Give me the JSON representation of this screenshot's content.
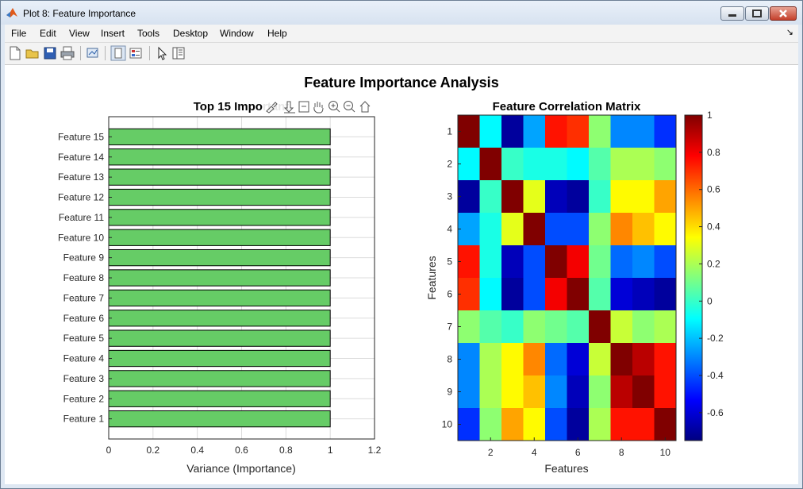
{
  "window": {
    "title": "Plot 8: Feature Importance"
  },
  "menu": [
    "File",
    "Edit",
    "View",
    "Insert",
    "Tools",
    "Desktop",
    "Window",
    "Help"
  ],
  "toolbar_icons": [
    "new-figure-icon",
    "open-file-icon",
    "save-icon",
    "print-icon",
    "link-plot-icon",
    "hide-plot-tools-icon",
    "show-plot-tools-icon",
    "edit-plot-arrow-icon",
    "property-inspector-icon"
  ],
  "figure": {
    "suptitle": "Feature Importance Analysis"
  },
  "axes_toolbar_icons": [
    "brush-icon",
    "data-tips-icon",
    "rotate-icon",
    "pan-icon",
    "zoom-in-icon",
    "zoom-out-icon",
    "home-icon"
  ],
  "colorbar": {
    "colormap": "jet",
    "ticks": [
      "1",
      "0.8",
      "0.6",
      "0.4",
      "0.2",
      "0",
      "-0.2",
      "-0.4",
      "-0.6"
    ],
    "tick_values": [
      1,
      0.8,
      0.6,
      0.4,
      0.2,
      0,
      -0.2,
      -0.4,
      -0.6
    ],
    "range": [
      -0.75,
      1
    ]
  },
  "chart_data": [
    {
      "type": "bar",
      "orientation": "horizontal",
      "title": "Top 15 Important",
      "xlabel": "Variance (Importance)",
      "ylabel": "",
      "categories": [
        "Feature 1",
        "Feature 2",
        "Feature 3",
        "Feature 4",
        "Feature 5",
        "Feature 6",
        "Feature 7",
        "Feature 8",
        "Feature 9",
        "Feature 10",
        "Feature 11",
        "Feature 12",
        "Feature 13",
        "Feature 14",
        "Feature 15"
      ],
      "values": [
        1,
        1,
        1,
        1,
        1,
        1,
        1,
        1,
        1,
        1,
        1,
        1,
        1,
        1,
        1
      ],
      "xlim": [
        0,
        1.2
      ],
      "xticks": [
        "0",
        "0.2",
        "0.4",
        "0.6",
        "0.8",
        "1",
        "1.2"
      ],
      "grid": true,
      "bar_color": "#66cc66"
    },
    {
      "type": "heatmap",
      "title": "Feature Correlation Matrix",
      "xlabel": "Features",
      "ylabel": "Features",
      "xticks": [
        "2",
        "4",
        "6",
        "8",
        "10"
      ],
      "yticks": [
        "1",
        "2",
        "3",
        "4",
        "5",
        "6",
        "7",
        "8",
        "9",
        "10"
      ],
      "matrix": [
        [
          1.0,
          -0.1,
          -0.7,
          -0.25,
          0.75,
          0.7,
          0.15,
          -0.3,
          -0.3,
          -0.45
        ],
        [
          -0.1,
          1.0,
          0.0,
          -0.05,
          -0.05,
          -0.1,
          0.05,
          0.2,
          0.2,
          0.15
        ],
        [
          -0.7,
          0.0,
          1.0,
          0.3,
          -0.65,
          -0.7,
          0.0,
          0.35,
          0.35,
          0.5
        ],
        [
          -0.25,
          -0.05,
          0.3,
          1.0,
          -0.4,
          -0.4,
          0.15,
          0.55,
          0.45,
          0.35
        ],
        [
          0.75,
          -0.05,
          -0.65,
          -0.4,
          1.0,
          0.8,
          0.1,
          -0.35,
          -0.3,
          -0.4
        ],
        [
          0.7,
          -0.1,
          -0.7,
          -0.4,
          0.8,
          1.0,
          0.05,
          -0.6,
          -0.65,
          -0.7
        ],
        [
          0.15,
          0.05,
          0.0,
          0.15,
          0.1,
          0.05,
          1.0,
          0.25,
          0.15,
          0.2
        ],
        [
          -0.3,
          0.2,
          0.35,
          0.55,
          -0.35,
          -0.6,
          0.25,
          1.0,
          0.9,
          0.75
        ],
        [
          -0.3,
          0.2,
          0.35,
          0.45,
          -0.3,
          -0.65,
          0.15,
          0.9,
          1.0,
          0.75
        ],
        [
          -0.45,
          0.15,
          0.5,
          0.35,
          -0.4,
          -0.7,
          0.2,
          0.75,
          0.75,
          1.0
        ]
      ],
      "colormap": "jet",
      "clim": [
        -0.75,
        1
      ]
    }
  ]
}
